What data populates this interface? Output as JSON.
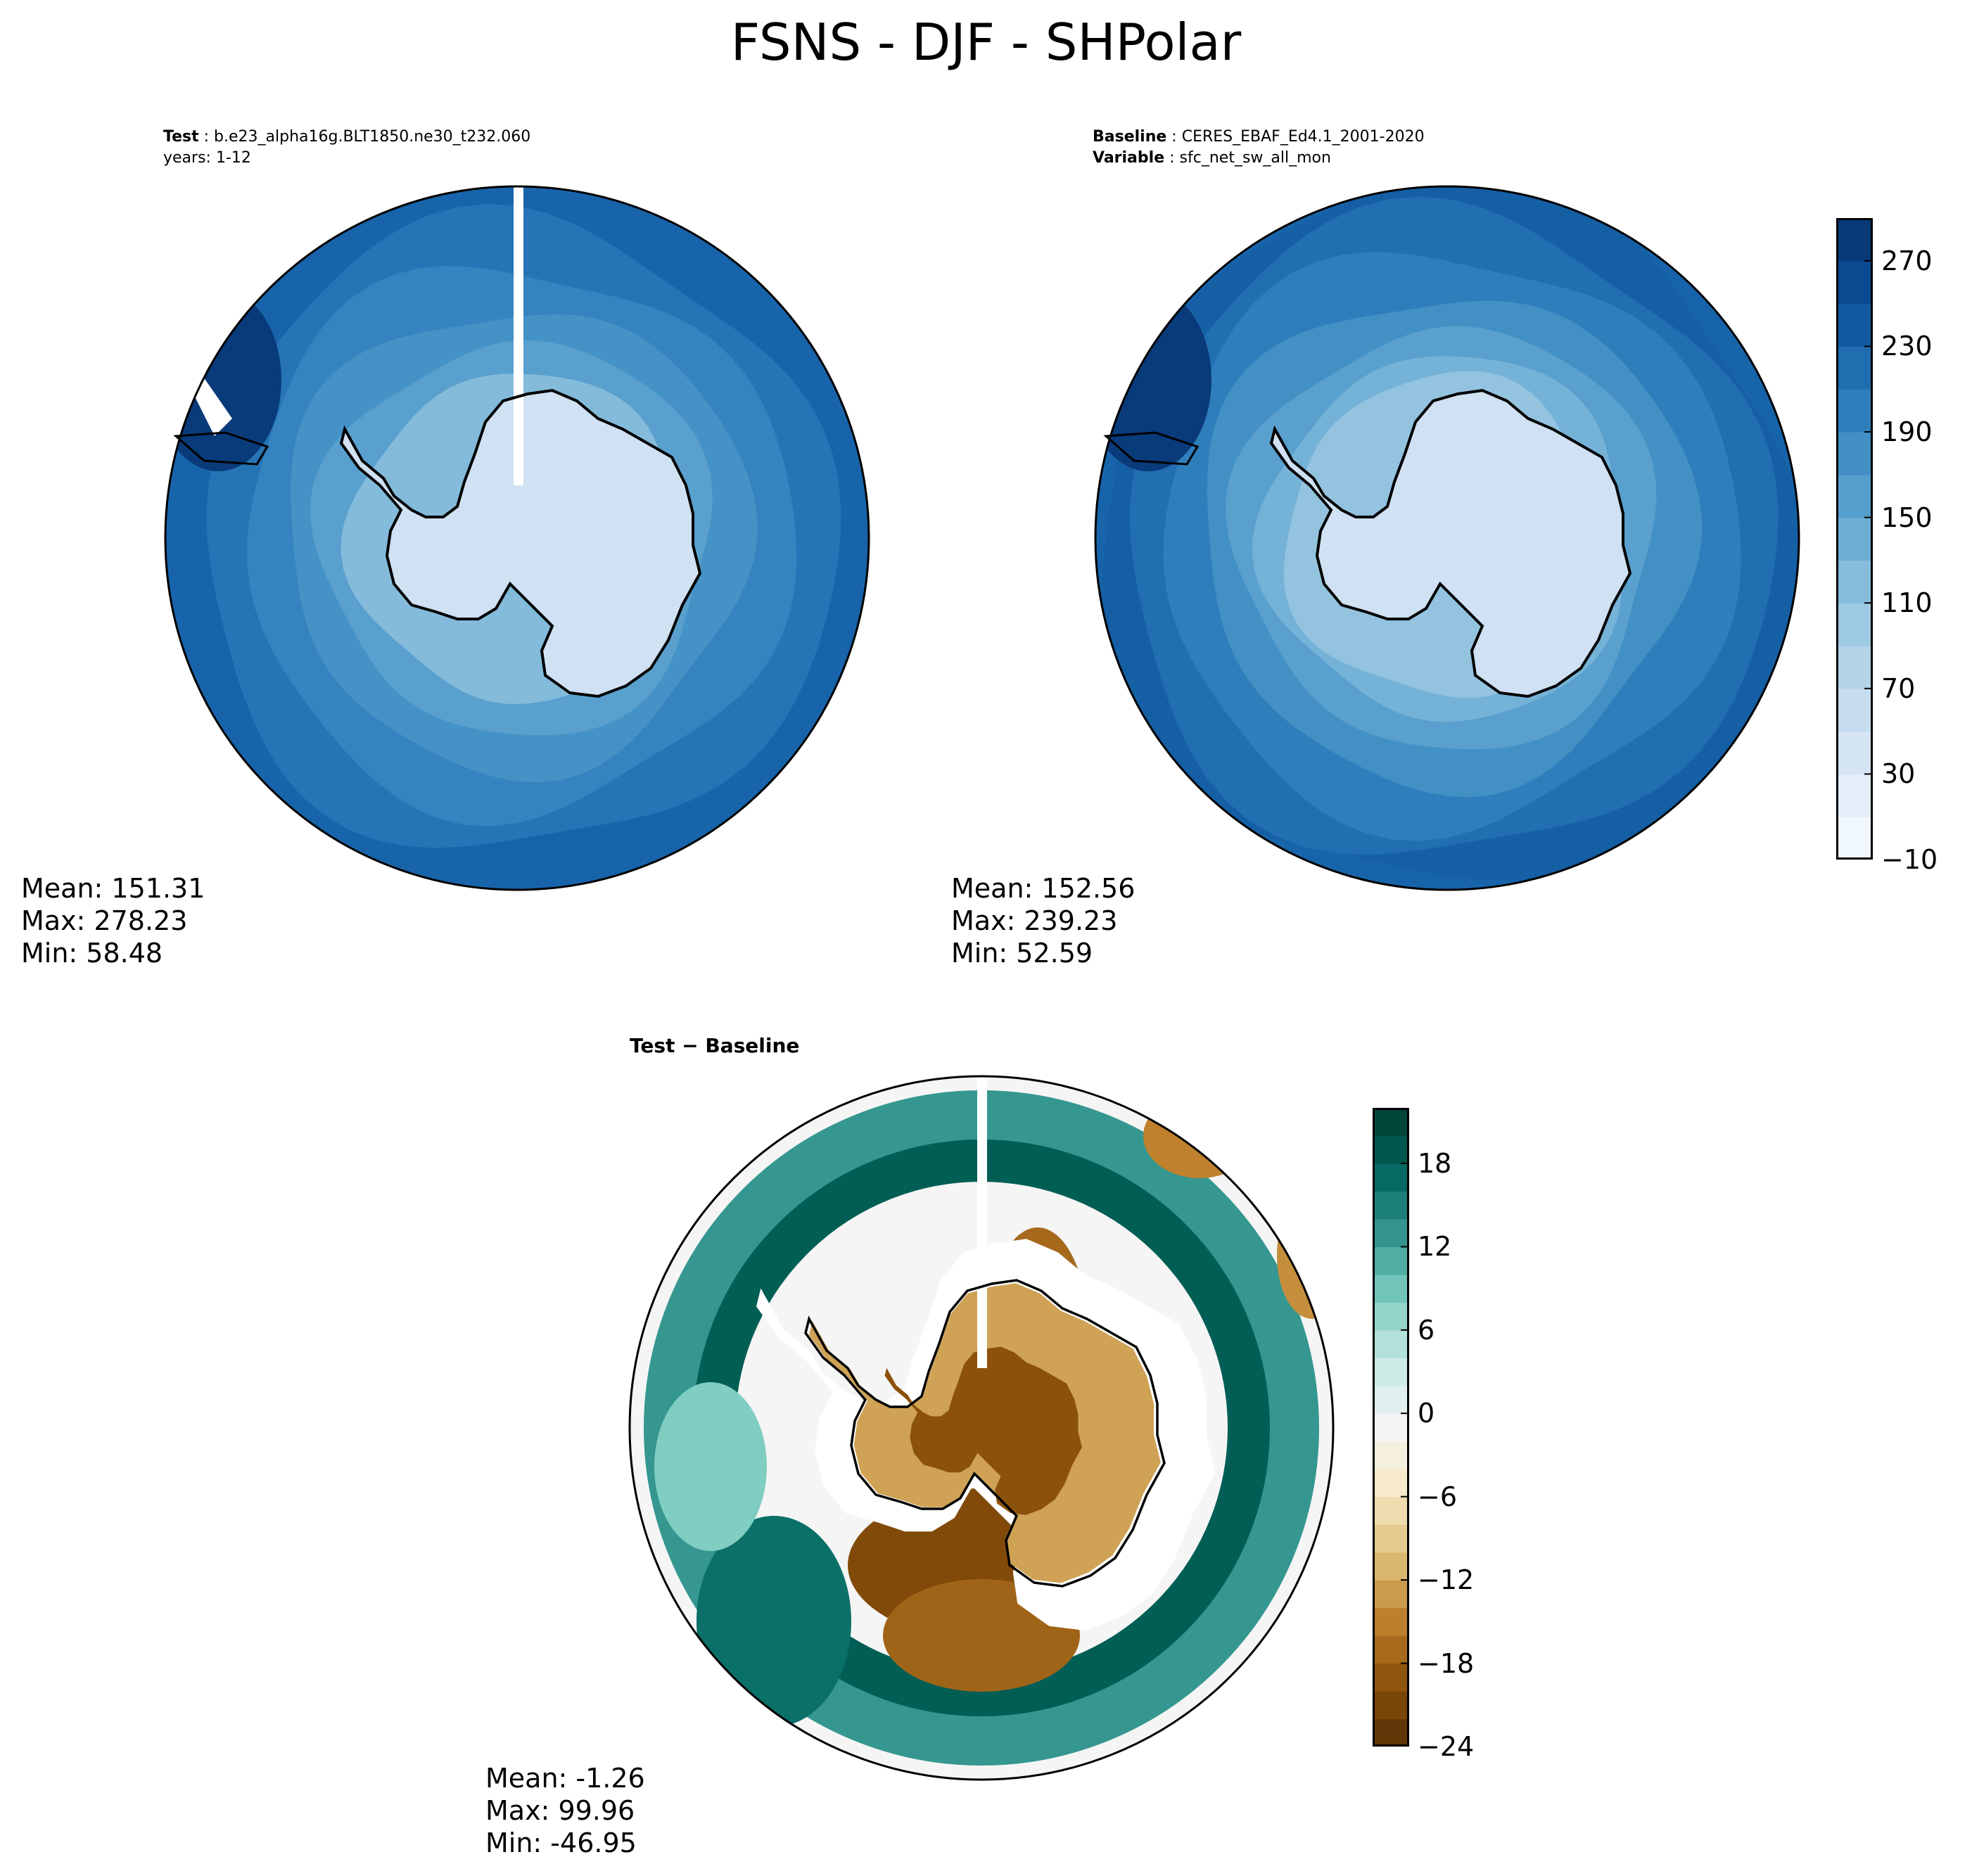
{
  "title": "FSNS - DJF - SHPolar",
  "colors": {
    "blues": [
      "#f7fbff",
      "#e3eef9",
      "#cfe1f2",
      "#b5d4e9",
      "#93c3df",
      "#6daed5",
      "#4b97c9",
      "#2f7ebc",
      "#1864aa",
      "#0a4a90",
      "#08306b"
    ],
    "brbg": [
      "#543005",
      "#8c510a",
      "#bf812d",
      "#dfc27d",
      "#f6e8c3",
      "#f5f5f5",
      "#c7eae5",
      "#80cdc1",
      "#35978f",
      "#01665e",
      "#003c30"
    ],
    "land_outline": "#000000"
  },
  "panels": {
    "test": {
      "label_key": "Test",
      "label_value": "b.e23_alpha16g.BLT1850.ne30_t232.060",
      "line2": "years: 1-12",
      "stats": {
        "mean": "Mean: 151.31",
        "max": "Max: 278.23",
        "min": "Min: 58.48"
      }
    },
    "baseline": {
      "label_key": "Baseline",
      "label_value": "CERES_EBAF_Ed4.1_2001-2020",
      "line2_key": "Variable",
      "line2_value": "sfc_net_sw_all_mon",
      "stats": {
        "mean": "Mean: 152.56",
        "max": "Max: 239.23",
        "min": "Min: 52.59"
      }
    },
    "diff": {
      "title": "Test − Baseline",
      "stats": {
        "mean": "Mean: -1.26",
        "max": "Max: 99.96",
        "min": "Min: -46.95"
      }
    }
  },
  "chart_data": [
    {
      "type": "heatmap",
      "projection": "south-polar-stereographic",
      "name": "Test",
      "colormap": "Blues",
      "levels": [
        -10,
        10,
        30,
        50,
        70,
        90,
        110,
        130,
        150,
        170,
        190,
        210,
        230,
        250,
        270,
        290
      ],
      "colorbar_ticks": [
        "270",
        "230",
        "190",
        "150",
        "110",
        "70",
        "30",
        "−10"
      ],
      "colorbar_tick_values": [
        270,
        230,
        190,
        150,
        110,
        70,
        30,
        -10
      ],
      "mean": 151.31,
      "max": 278.23,
      "min": 58.48
    },
    {
      "type": "heatmap",
      "projection": "south-polar-stereographic",
      "name": "Baseline",
      "colormap": "Blues",
      "levels": [
        -10,
        10,
        30,
        50,
        70,
        90,
        110,
        130,
        150,
        170,
        190,
        210,
        230,
        250,
        270,
        290
      ],
      "mean": 152.56,
      "max": 239.23,
      "min": 52.59
    },
    {
      "type": "heatmap",
      "projection": "south-polar-stereographic",
      "name": "Test − Baseline",
      "colormap": "BrBG",
      "levels": [
        -24,
        -22,
        -20,
        -18,
        -16,
        -14,
        -12,
        -10,
        -8,
        -6,
        -4,
        -2,
        0,
        2,
        4,
        6,
        8,
        10,
        12,
        14,
        16,
        18,
        20,
        22
      ],
      "colorbar_ticks": [
        "18",
        "12",
        "6",
        "0",
        "−6",
        "−12",
        "−18",
        "−24"
      ],
      "colorbar_tick_values": [
        18,
        12,
        6,
        0,
        -6,
        -12,
        -18,
        -24
      ],
      "mean": -1.26,
      "max": 99.96,
      "min": -46.95
    }
  ]
}
